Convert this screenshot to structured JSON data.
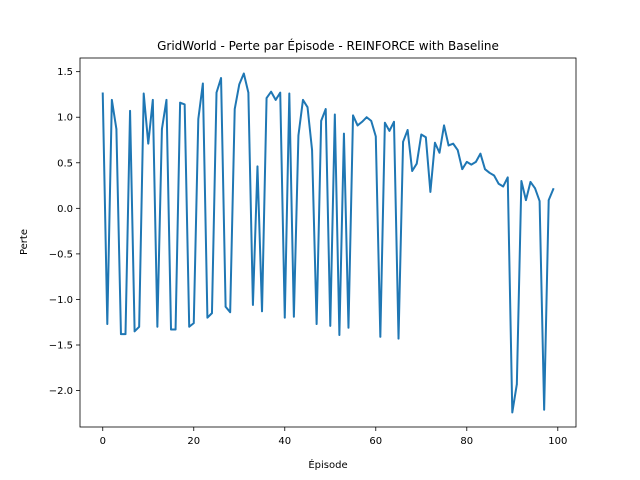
{
  "chart_data": {
    "type": "line",
    "title": "GridWorld - Perte par Épisode - REINFORCE with Baseline",
    "xlabel": "Épisode",
    "ylabel": "Perte",
    "xlim": [
      -5,
      104
    ],
    "ylim": [
      -2.4,
      1.65
    ],
    "xticks": [
      0,
      20,
      40,
      60,
      80,
      100
    ],
    "yticks": [
      -2.0,
      -1.5,
      -1.0,
      -0.5,
      0.0,
      0.5,
      1.0,
      1.5
    ],
    "ytick_labels": [
      "−2.0",
      "−1.5",
      "−1.0",
      "−0.5",
      "0.0",
      "0.5",
      "1.0",
      "1.5"
    ],
    "grid": false,
    "legend": "none",
    "series": [
      {
        "color": "#1f77b4",
        "x": [
          0,
          1,
          2,
          3,
          4,
          5,
          6,
          7,
          8,
          9,
          10,
          11,
          12,
          13,
          14,
          15,
          16,
          17,
          18,
          19,
          20,
          21,
          22,
          23,
          24,
          25,
          26,
          27,
          28,
          29,
          30,
          31,
          32,
          33,
          34,
          35,
          36,
          37,
          38,
          39,
          40,
          41,
          42,
          43,
          44,
          45,
          46,
          47,
          48,
          49,
          50,
          51,
          52,
          53,
          54,
          55,
          56,
          57,
          58,
          59,
          60,
          61,
          62,
          63,
          64,
          65,
          66,
          67,
          68,
          69,
          70,
          71,
          72,
          73,
          74,
          75,
          76,
          77,
          78,
          79,
          80,
          81,
          82,
          83,
          84,
          85,
          86,
          87,
          88,
          89,
          90,
          91,
          92,
          93,
          94,
          95,
          96,
          97,
          98,
          99
        ],
        "y": [
          1.26,
          -1.27,
          1.19,
          0.87,
          -1.38,
          -1.38,
          1.07,
          -1.35,
          -1.3,
          1.26,
          0.71,
          1.19,
          -1.3,
          0.87,
          1.19,
          -1.33,
          -1.33,
          1.16,
          1.14,
          -1.3,
          -1.26,
          0.98,
          1.37,
          -1.2,
          -1.15,
          1.27,
          1.43,
          -1.08,
          -1.14,
          1.09,
          1.36,
          1.48,
          1.27,
          -1.06,
          0.46,
          -1.13,
          1.21,
          1.28,
          1.19,
          1.27,
          -1.2,
          1.26,
          -1.19,
          0.8,
          1.19,
          1.11,
          0.64,
          -1.27,
          0.96,
          1.09,
          -1.29,
          1.03,
          -1.39,
          0.82,
          -1.31,
          1.02,
          0.91,
          0.95,
          1.0,
          0.96,
          0.79,
          -1.41,
          0.94,
          0.85,
          0.95,
          -1.43,
          0.73,
          0.86,
          0.41,
          0.49,
          0.81,
          0.78,
          0.18,
          0.72,
          0.61,
          0.91,
          0.69,
          0.71,
          0.64,
          0.43,
          0.51,
          0.48,
          0.51,
          0.6,
          0.43,
          0.39,
          0.36,
          0.27,
          0.24,
          0.34,
          -2.24,
          -1.93,
          0.3,
          0.09,
          0.29,
          0.22,
          0.08,
          -2.21,
          0.09,
          0.21
        ]
      }
    ]
  }
}
